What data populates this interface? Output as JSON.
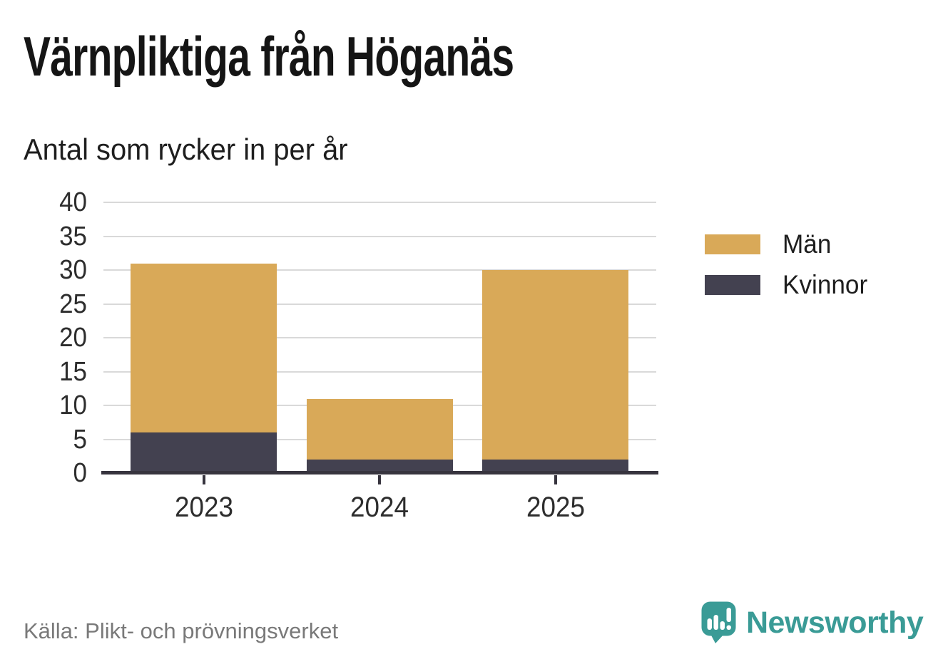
{
  "header": {
    "title": "Värnpliktiga från Höganäs",
    "subtitle": "Antal som rycker in per år"
  },
  "chart_data": {
    "type": "bar",
    "stacked": true,
    "title": "Värnpliktiga från Höganäs",
    "subtitle": "Antal som rycker in per år",
    "categories": [
      "2023",
      "2024",
      "2025"
    ],
    "series": [
      {
        "name": "Män",
        "color": "#d9a958",
        "values": [
          25,
          9,
          28
        ]
      },
      {
        "name": "Kvinnor",
        "color": "#434150",
        "values": [
          6,
          2,
          2
        ]
      }
    ],
    "stacked_totals": [
      31,
      11,
      30
    ],
    "ylim": [
      0,
      40
    ],
    "yticks": [
      0,
      5,
      10,
      15,
      20,
      25,
      30,
      35,
      40
    ],
    "grid": "horizontal",
    "gridline_color": "#d9d9d9",
    "axis_color": "#37343e",
    "tick_label_color": "#2d2d2d",
    "legend_position": "right"
  },
  "legend": {
    "items": [
      {
        "label": "Män"
      },
      {
        "label": "Kvinnor"
      }
    ]
  },
  "footer": {
    "source": "Källa: Plikt- och prövningsverket",
    "brand": "Newsworthy",
    "brand_color": "#3a9b96"
  }
}
